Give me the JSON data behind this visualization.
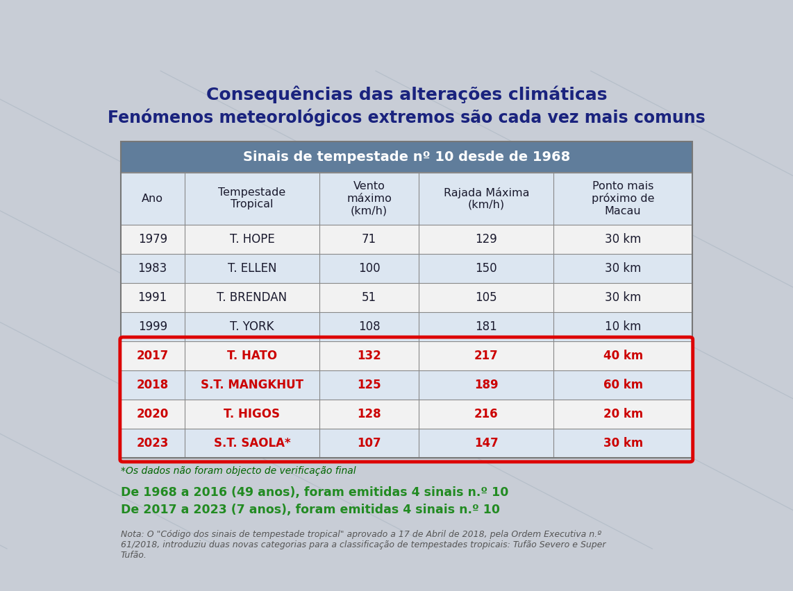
{
  "title1": "Consequências das alterações climáticas",
  "title2": "Fenómenos meteorológicos extremos são cada vez mais comuns",
  "table_title": "Sinais de tempestade nº 10 desde de 1968",
  "col_headers": [
    "Ano",
    "Tempestade\nTropical",
    "Vento\nmáximo\n(km/h)",
    "Rajada Máxima\n(km/h)",
    "Ponto mais\npróximo de\nMacau"
  ],
  "rows": [
    [
      "1979",
      "T. HOPE",
      "71",
      "129",
      "30 km"
    ],
    [
      "1983",
      "T. ELLEN",
      "100",
      "150",
      "30 km"
    ],
    [
      "1991",
      "T. BRENDAN",
      "51",
      "105",
      "30 km"
    ],
    [
      "1999",
      "T. YORK",
      "108",
      "181",
      "10 km"
    ],
    [
      "2017",
      "T. HATO",
      "132",
      "217",
      "40 km"
    ],
    [
      "2018",
      "S.T. MANGKHUT",
      "125",
      "189",
      "60 km"
    ],
    [
      "2020",
      "T. HIGOS",
      "128",
      "216",
      "20 km"
    ],
    [
      "2023",
      "S.T. SAOLA*",
      "107",
      "147",
      "30 km"
    ]
  ],
  "highlighted_rows": [
    4,
    5,
    6,
    7
  ],
  "highlight_text_color": "#cc0000",
  "normal_text_color": "#1a1a2e",
  "header_bg": "#607d9b",
  "header_text_color": "#ffffff",
  "col_header_bg": "#dce6f1",
  "row_odd_bg": "#f2f2f2",
  "row_even_bg": "#dce6f1",
  "background_color": "#c8cdd6",
  "title1_color": "#1a237e",
  "title2_color": "#1a237e",
  "asterisk_note": "*Os dados não foram objecto de verificação final",
  "asterisk_color": "#006400",
  "highlight_note1": "De 1968 a 2016 (49 anos), foram emitidas 4 sinais n.º 10",
  "highlight_note2": "De 2017 a 2023 (7 anos), foram emitidas 4 sinais n.º 10",
  "highlight_note_color": "#228b22",
  "nota_text": "Nota: O \"Código dos sinais de tempestade tropical\" aprovado a 17 de Abril de 2018, pela Ordem Executiva n.º\n61/2018, introduziu duas novas categorias para a classificação de tempestades tropicais: Tufão Severo e Super\nTufão.",
  "nota_color": "#555555",
  "red_border_color": "#dd0000",
  "col_props": [
    0.09,
    0.19,
    0.14,
    0.19,
    0.195
  ]
}
